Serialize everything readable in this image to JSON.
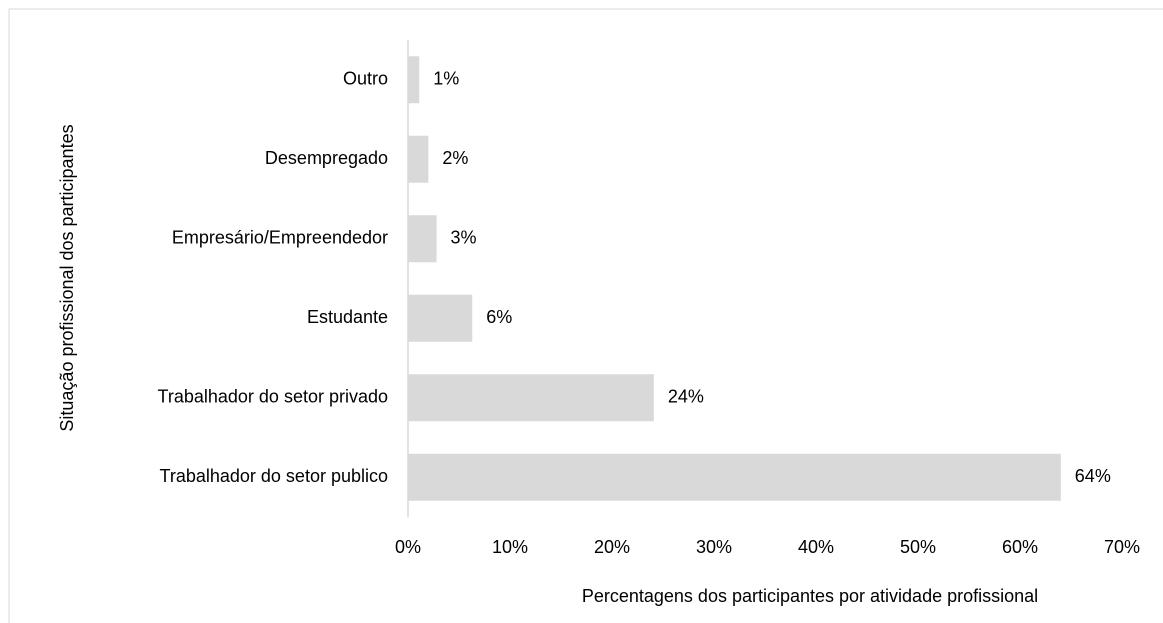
{
  "chart_data": {
    "type": "hbar",
    "x_label": "Percentagens dos participantes por atividade profissional",
    "y_label": "Situação profissional dos participantes",
    "categories": [
      "Outro",
      "Desempregado",
      "Empresário/Empreendedor",
      "Estudante",
      "Trabalhador do setor privado",
      "Trabalhador do setor publico"
    ],
    "values": [
      1.1,
      2,
      2.8,
      6.3,
      24.1,
      64
    ],
    "value_labels": [
      "1%",
      "2%",
      "3%",
      "6%",
      "24%",
      "64%"
    ],
    "color": "#d9d9d9",
    "xlim": [
      0,
      70
    ],
    "xticks": [
      {
        "value": 0,
        "label": "0%"
      },
      {
        "value": 10,
        "label": "10%"
      },
      {
        "value": 20,
        "label": "20%"
      },
      {
        "value": 30,
        "label": "30%"
      },
      {
        "value": 40,
        "label": "40%"
      },
      {
        "value": 50,
        "label": "50%"
      },
      {
        "value": 60,
        "label": "60%"
      },
      {
        "value": 70,
        "label": "70%"
      }
    ],
    "grid": false
  }
}
